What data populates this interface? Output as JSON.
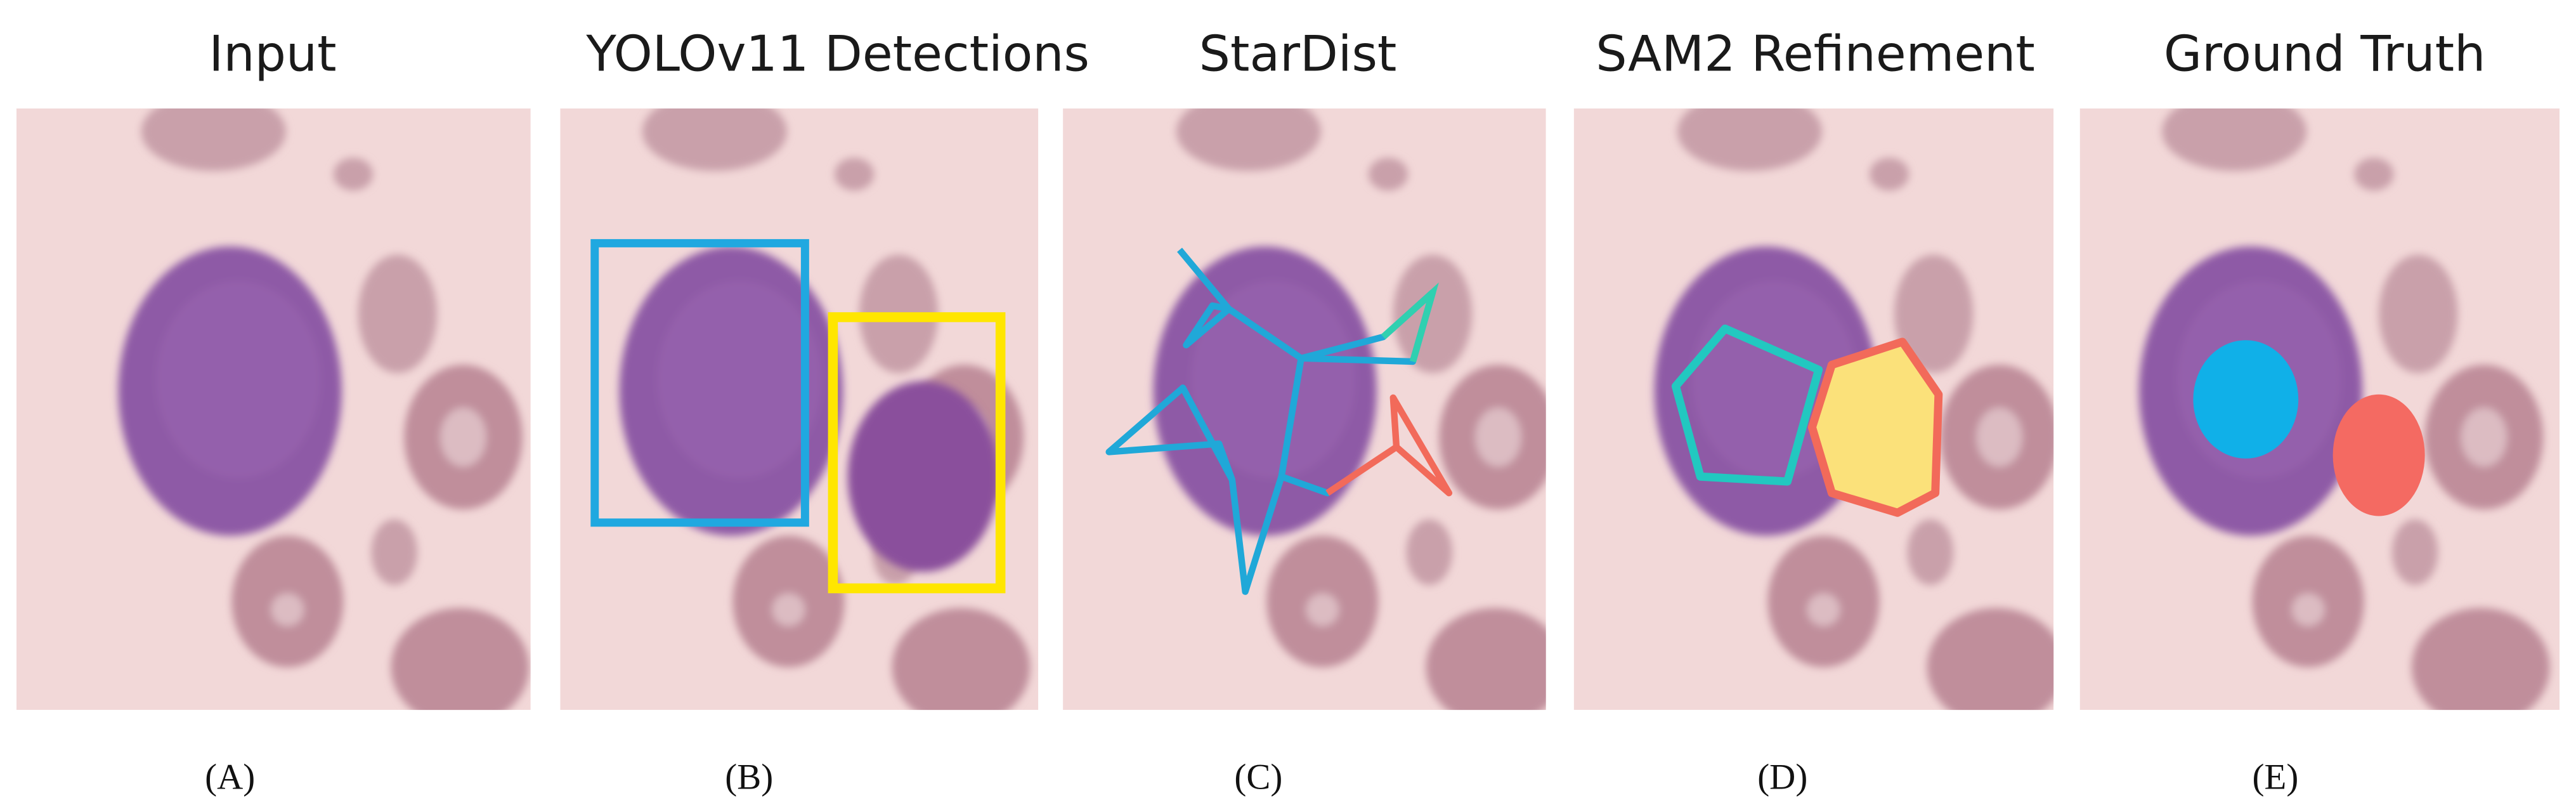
{
  "panels": [
    {
      "title": "Input",
      "label": "(A)"
    },
    {
      "title": "YOLOv11 Detections",
      "label": "(B)"
    },
    {
      "title": "StarDist",
      "label": "(C)"
    },
    {
      "title": "SAM2 Refinement",
      "label": "(D)"
    },
    {
      "title": "Ground Truth",
      "label": "(E)"
    }
  ]
}
